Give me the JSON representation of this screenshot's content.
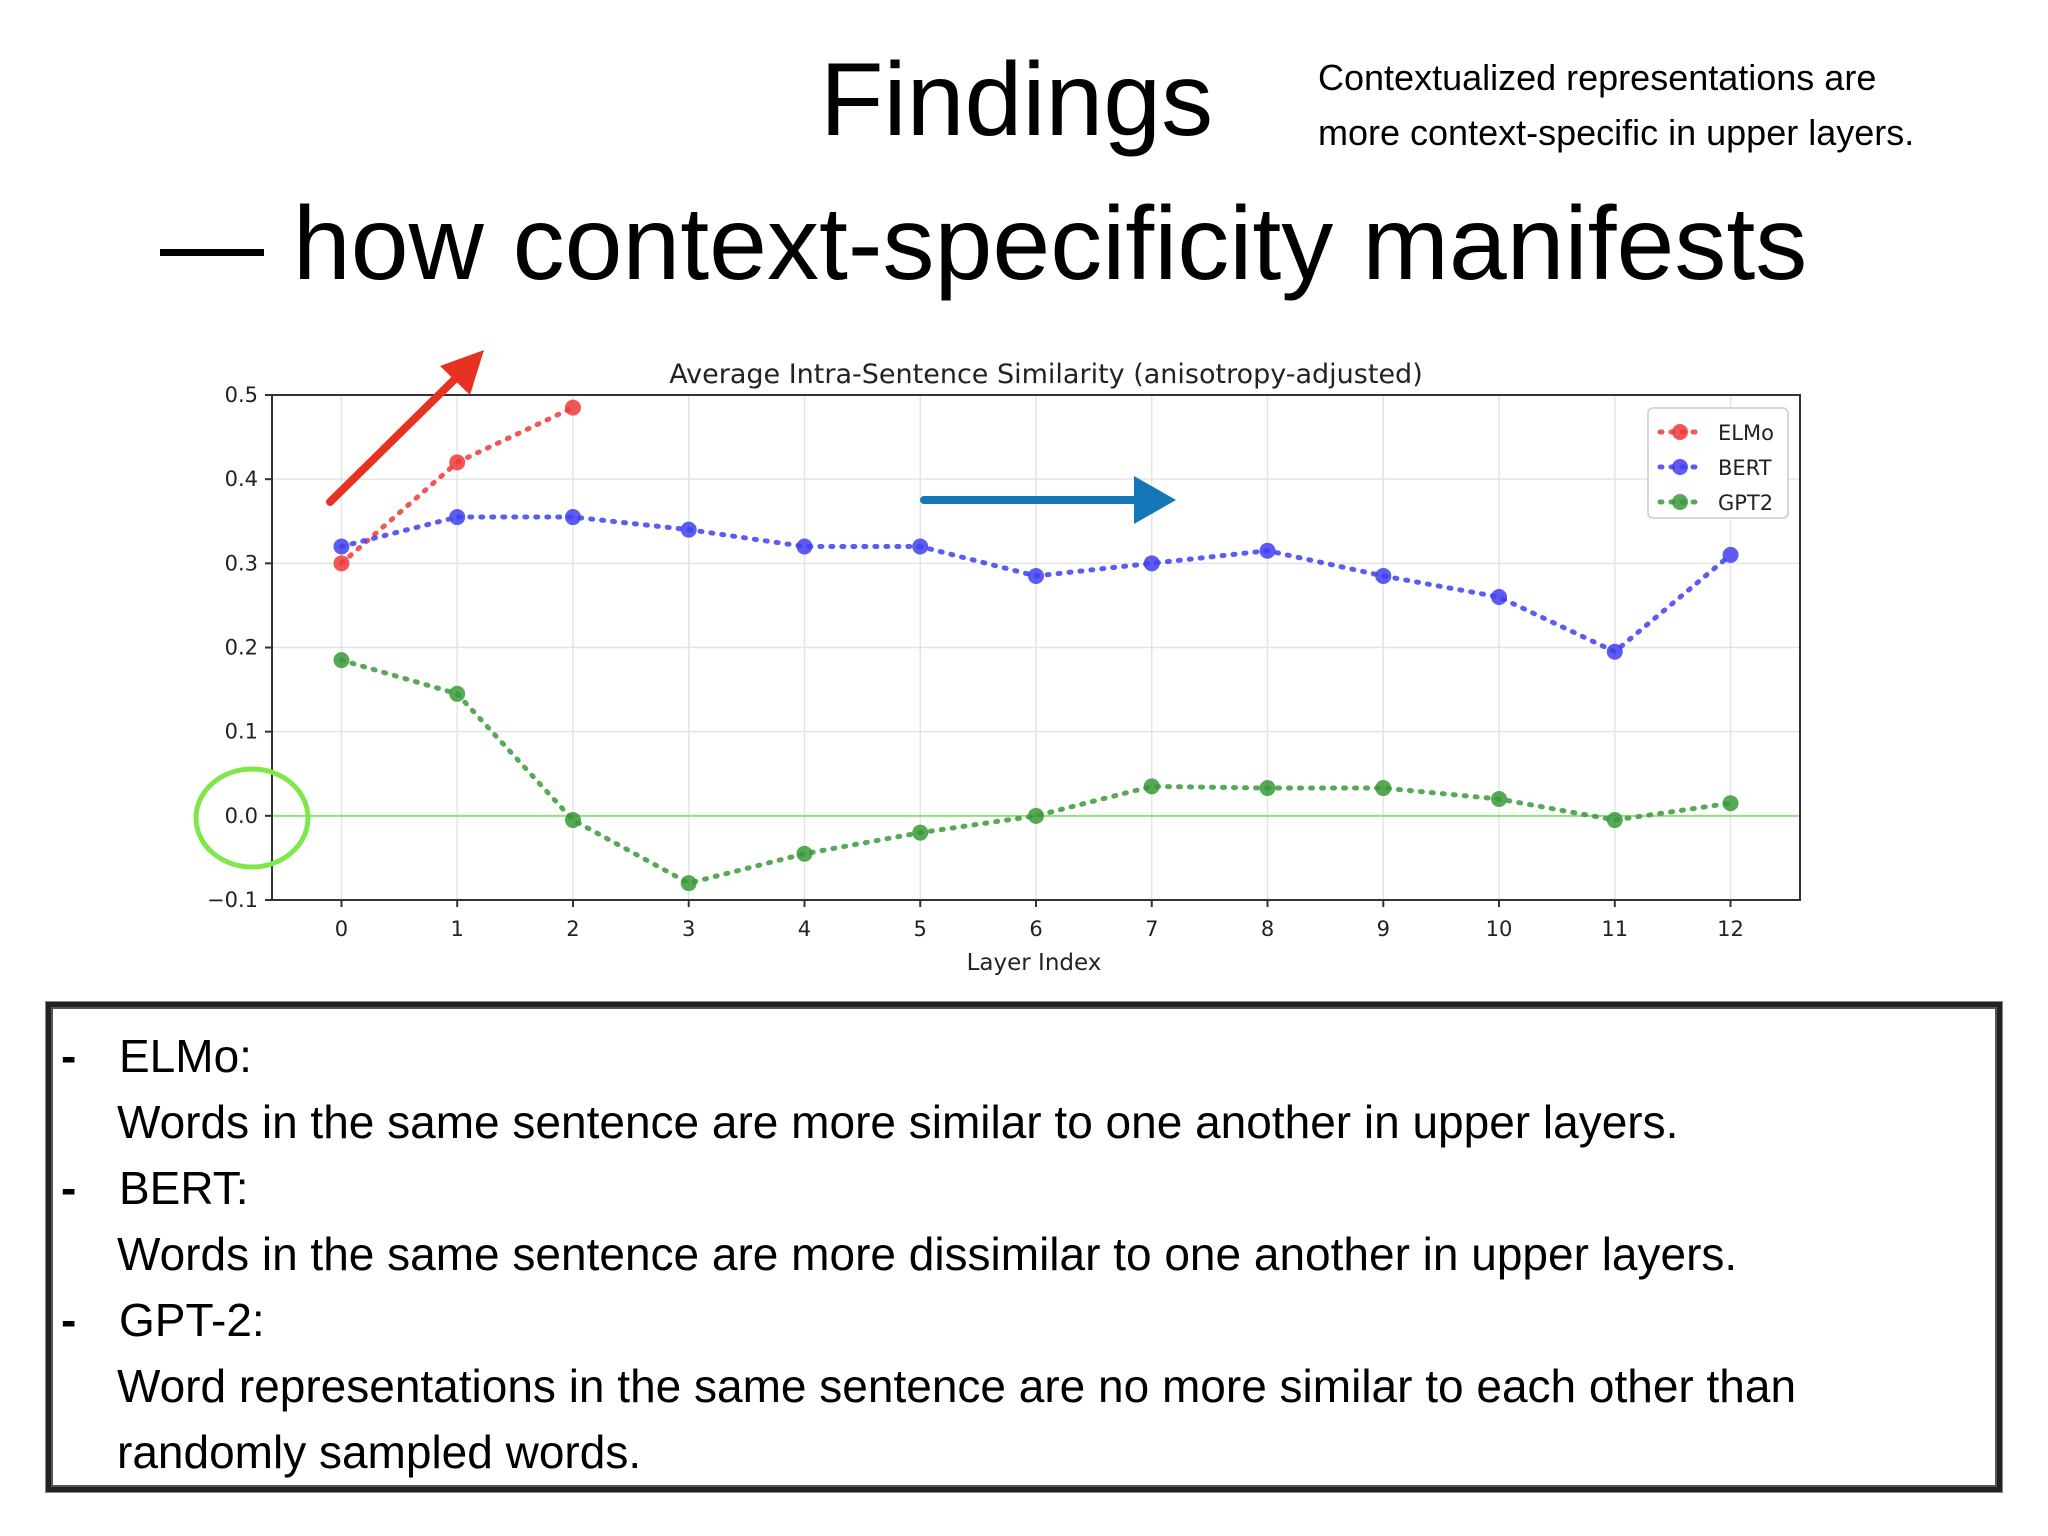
{
  "slide": {
    "title": "Findings",
    "subtitle": "— how context-specificity manifests",
    "note_line1": "Contextualized representations are",
    "note_line2": "more context-specific in upper layers."
  },
  "chart_data": {
    "type": "line",
    "title": "Average Intra-Sentence Similarity (anisotropy-adjusted)",
    "xlabel": "Layer Index",
    "ylabel": "",
    "xlim": [
      -0.6,
      12.6
    ],
    "ylim": [
      -0.1,
      0.5
    ],
    "x_ticks": [
      0,
      1,
      2,
      3,
      4,
      5,
      6,
      7,
      8,
      9,
      10,
      11,
      12
    ],
    "y_ticks": [
      -0.1,
      0.0,
      0.1,
      0.2,
      0.3,
      0.4,
      0.5
    ],
    "y_tick_labels": [
      "−0.1",
      "0.0",
      "0.1",
      "0.2",
      "0.3",
      "0.4",
      "0.5"
    ],
    "grid": true,
    "legend_position": "top-right",
    "reference_line": 0.0,
    "series": [
      {
        "name": "ELMo",
        "color": "#f03a3a",
        "x": [
          0,
          1,
          2
        ],
        "values": [
          0.3,
          0.42,
          0.485
        ]
      },
      {
        "name": "BERT",
        "color": "#4040f0",
        "x": [
          0,
          1,
          2,
          3,
          4,
          5,
          6,
          7,
          8,
          9,
          10,
          11,
          12
        ],
        "values": [
          0.32,
          0.355,
          0.355,
          0.34,
          0.32,
          0.32,
          0.285,
          0.3,
          0.315,
          0.285,
          0.26,
          0.195,
          0.31
        ]
      },
      {
        "name": "GPT2",
        "color": "#3a9a3a",
        "x": [
          0,
          1,
          2,
          3,
          4,
          5,
          6,
          7,
          8,
          9,
          10,
          11,
          12
        ],
        "values": [
          0.185,
          0.145,
          -0.005,
          -0.08,
          -0.045,
          -0.02,
          0.0,
          0.035,
          0.033,
          0.033,
          0.02,
          -0.005,
          0.015
        ]
      }
    ],
    "annotations": {
      "red_arrow_color": "#e53222",
      "blue_arrow_color": "#1677b8",
      "green_circle_color": "#7ee84a"
    }
  },
  "findings": [
    {
      "dash": "-",
      "model": "ELMo:",
      "lines": [
        "Words in the same sentence are more similar to one another in upper layers."
      ]
    },
    {
      "dash": "-",
      "model": "BERT:",
      "lines": [
        "Words in the same sentence are more dissimilar to one another in upper layers."
      ]
    },
    {
      "dash": "-",
      "model": "GPT-2:",
      "lines": [
        "Word representations in the same sentence are no more similar to each other than",
        "randomly sampled words."
      ]
    }
  ]
}
